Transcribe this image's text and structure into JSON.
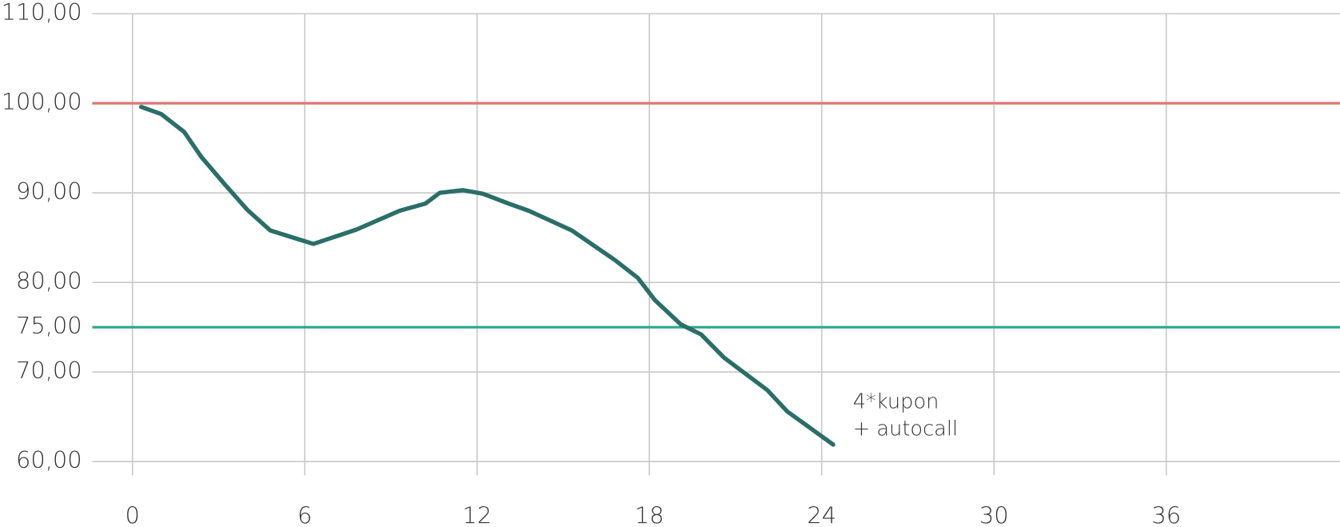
{
  "chart_data": {
    "type": "line",
    "x": [
      0.3,
      1.0,
      1.8,
      2.4,
      3.2,
      4.0,
      4.8,
      6.3,
      7.8,
      9.3,
      10.2,
      10.7,
      11.5,
      12.2,
      13.1,
      13.8,
      15.3,
      16.8,
      17.6,
      18.2,
      19.1,
      19.8,
      20.6,
      22.1,
      22.8,
      24.4
    ],
    "series": [
      {
        "color": "#2a6e69",
        "values": [
          99.6,
          98.8,
          96.8,
          94.0,
          91.0,
          88.1,
          85.8,
          84.3,
          85.9,
          88.0,
          88.8,
          90.0,
          90.3,
          89.9,
          88.8,
          88.0,
          85.8,
          82.5,
          80.5,
          78.0,
          75.3,
          74.2,
          71.6,
          68.0,
          65.6,
          61.9
        ]
      }
    ],
    "reference_lines": [
      {
        "value": 100,
        "color": "#e07575"
      },
      {
        "value": 75,
        "color": "#2aa88a"
      }
    ],
    "annotation": [
      "4*kupon",
      "+ autocall"
    ],
    "xlim": [
      -1.4,
      42.05
    ],
    "ylim": [
      60,
      110
    ],
    "xticks": [
      0,
      6,
      12,
      18,
      24,
      30,
      36
    ],
    "yticks": [
      {
        "value": 60,
        "label": "60,00"
      },
      {
        "value": 70,
        "label": "70,00"
      },
      {
        "value": 75,
        "label": "75,00"
      },
      {
        "value": 80,
        "label": "80,00"
      },
      {
        "value": 90,
        "label": "90,00"
      },
      {
        "value": 100,
        "label": "100,00"
      },
      {
        "value": 110,
        "label": "110,00"
      }
    ],
    "grid": true
  }
}
